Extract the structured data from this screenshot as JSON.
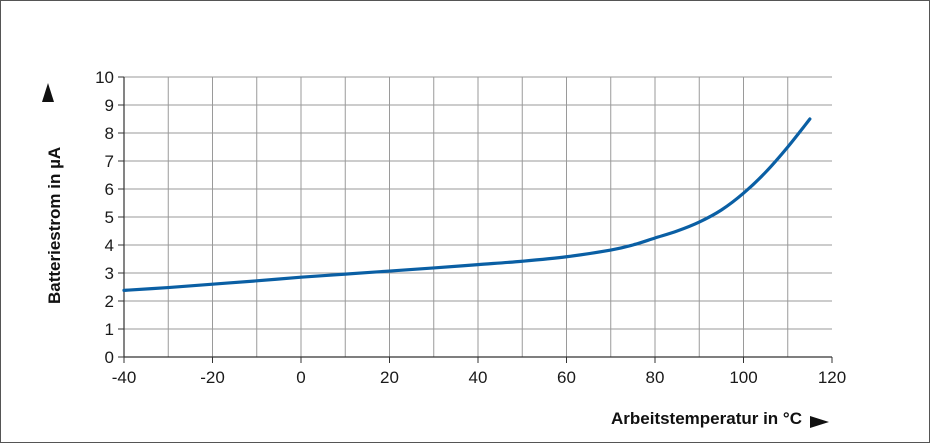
{
  "chart_data": {
    "type": "line",
    "title": "",
    "xlabel": "Arbeitstemperatur in °C",
    "ylabel": "Batteriestrom in µA",
    "xlim": [
      -40,
      120
    ],
    "ylim": [
      0,
      10
    ],
    "x_ticks": [
      -40,
      -20,
      0,
      20,
      40,
      60,
      80,
      100,
      120
    ],
    "y_ticks": [
      0,
      1,
      2,
      3,
      4,
      5,
      6,
      7,
      8,
      9,
      10
    ],
    "x_tick_labels": [
      "-40",
      "-20",
      "0",
      "20",
      "40",
      "60",
      "80",
      "100",
      "120"
    ],
    "y_tick_labels": [
      "0",
      "1",
      "2",
      "3",
      "4",
      "5",
      "6",
      "7",
      "8",
      "9",
      "10"
    ],
    "grid": true,
    "series": [
      {
        "color": "#0a5fa4",
        "x": [
          -40,
          -30,
          -20,
          -10,
          0,
          10,
          20,
          30,
          40,
          50,
          60,
          70,
          75,
          80,
          85,
          90,
          95,
          100,
          105,
          110,
          115
        ],
        "y": [
          2.38,
          2.48,
          2.6,
          2.72,
          2.85,
          2.96,
          3.07,
          3.18,
          3.3,
          3.42,
          3.58,
          3.82,
          4.0,
          4.25,
          4.5,
          4.82,
          5.25,
          5.85,
          6.6,
          7.5,
          8.5
        ]
      }
    ]
  }
}
